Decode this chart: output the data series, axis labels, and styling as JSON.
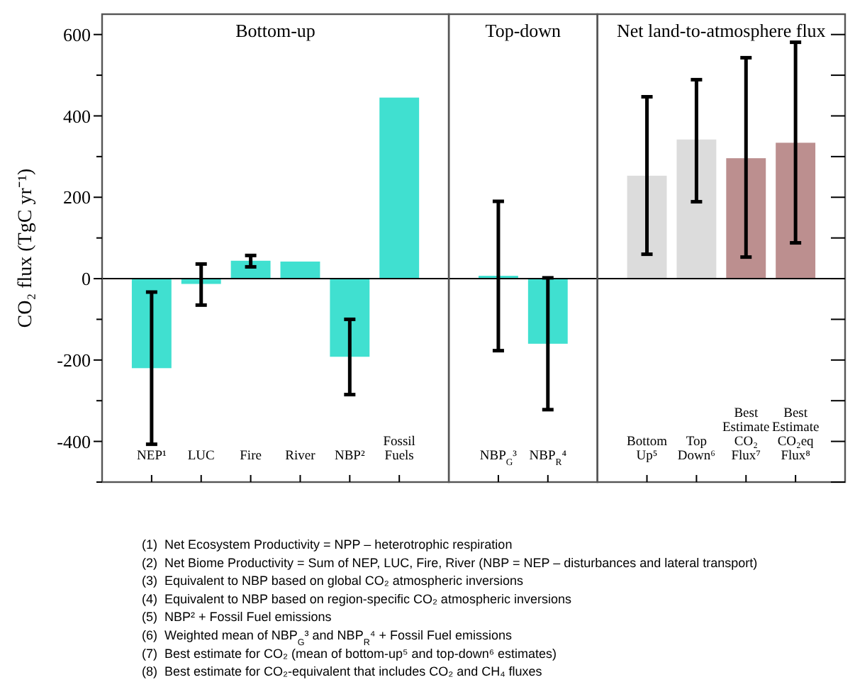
{
  "chart_data": [
    {
      "type": "bar",
      "title": "Bottom-up",
      "ylabel": "CO₂ flux (TgC yr⁻¹)",
      "categories": [
        "NEP¹",
        "LUC",
        "Fire",
        "River",
        "NBP²",
        "Fossil Fuels"
      ],
      "values": [
        -220,
        -13,
        44,
        42,
        -192,
        445
      ],
      "color": "#40e0d0",
      "errors": [
        [
          -407,
          -33
        ],
        [
          -65,
          36
        ],
        [
          29,
          57
        ],
        null,
        [
          -285,
          -100
        ],
        null
      ],
      "ylim": [
        -500,
        650
      ],
      "yticks": [
        {
          "value": -500,
          "label": null
        },
        -400,
        {
          "value": -300,
          "label": null
        },
        -200,
        {
          "value": -100,
          "label": null
        },
        0,
        {
          "value": 100,
          "label": null
        },
        200,
        {
          "value": 300,
          "label": null
        },
        400,
        {
          "value": 500,
          "label": null
        },
        600
      ],
      "annotations": [
        "(1)  Net Ecosystem Productivity = NPP – heterotrophic respiration",
        "(2)  Net Biome Productivity = Sum of NEP, LUC, Fire, River (NBP = NEP – disturbances and lateral transport)",
        "(3)  Equivalent to NBP based on global CO₂ atmospheric inversions",
        "(4)  Equivalent to NBP based on region-specific CO₂ atmospheric inversions",
        "(5)  NBP² + Fossil Fuel emissions",
        "(6)  Weighted mean of NBP$_{G}$³ and NBP$_{R}$⁴ + Fossil Fuel emissions",
        "(7)  Best estimate for CO₂ (mean of bottom-up⁵ and top-down⁶ estimates)",
        "(8)  Best estimate for CO₂-equivalent that includes CO₂ and CH₄ fluxes"
      ]
    },
    {
      "type": "bar",
      "title": "Top-down",
      "categories": [
        "NBP$_{G}$³",
        "NBP$_{R}$⁴"
      ],
      "values": [
        7,
        -160
      ],
      "color": "#40e0d0",
      "errors": [
        [
          -177,
          190
        ],
        [
          -322,
          2
        ]
      ],
      "ylim": [
        -500,
        650
      ],
      "tick_labels": "x"
    },
    {
      "type": "bar",
      "title": "Net land-to-atmosphere flux",
      "categories": [
        "Bottom Up⁵",
        "Top Down⁶",
        "Best Estimate CO₂ Flux⁷",
        "Best Estimate CO₂eq Flux⁸"
      ],
      "values": [
        253,
        342,
        296,
        334
      ],
      "colors": [
        "#dcdcdc",
        "#dcdcdc",
        "#bc8f8f",
        "#bc8f8f"
      ],
      "errors": [
        [
          60,
          447
        ],
        [
          189,
          489
        ],
        [
          53,
          543
        ],
        [
          88,
          581
        ]
      ],
      "ylim": [
        -500,
        650
      ],
      "yticks": [
        {
          "value": -500,
          "label": null
        },
        {
          "value": -400,
          "label": null
        },
        {
          "value": -300,
          "label": null
        },
        {
          "value": -200,
          "label": null
        },
        {
          "value": -100,
          "label": null
        },
        {
          "value": 0,
          "label": null
        },
        {
          "value": 100,
          "label": null
        },
        {
          "value": 200,
          "label": null
        },
        {
          "value": 300,
          "label": null
        },
        {
          "value": 400,
          "label": null
        },
        {
          "value": 500,
          "label": null
        },
        {
          "value": 600,
          "label": null
        }
      ],
      "tick_labels": "x"
    }
  ]
}
